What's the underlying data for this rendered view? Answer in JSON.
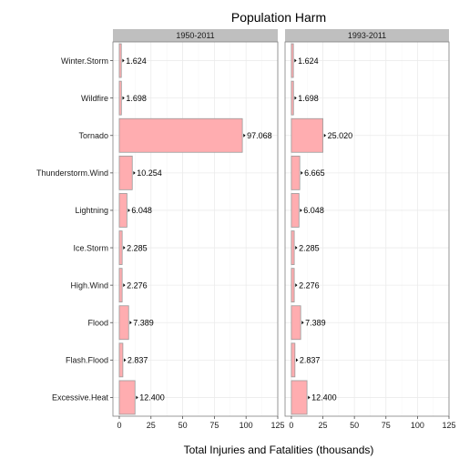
{
  "chart_data": {
    "type": "bar",
    "orientation": "horizontal",
    "title": "Population Harm",
    "xlabel": "Total Injuries and Fatalities (thousands)",
    "ylabel": "",
    "xlim": [
      -5,
      125
    ],
    "xticks": [
      0,
      25,
      50,
      75,
      100,
      125
    ],
    "grid": true,
    "bar_fill": "#ffadb0",
    "bar_stroke": "#9a9a9a",
    "strip_fill": "#bfbfbf",
    "categories": [
      "Winter.Storm",
      "Wildfire",
      "Tornado",
      "Thunderstorm.Wind",
      "Lightning",
      "Ice.Storm",
      "High.Wind",
      "Flood",
      "Flash.Flood",
      "Excessive.Heat"
    ],
    "panels": [
      {
        "name": "1950-2011",
        "values": [
          1.624,
          1.698,
          97.068,
          10.254,
          6.048,
          2.285,
          2.276,
          7.389,
          2.837,
          12.4
        ],
        "labels": [
          "1.624",
          "1.698",
          "97.068",
          "10.254",
          "6.048",
          "2.285",
          "2.276",
          "7.389",
          "2.837",
          "12.400"
        ]
      },
      {
        "name": "1993-2011",
        "values": [
          1.624,
          1.698,
          25.02,
          6.665,
          6.048,
          2.285,
          2.276,
          7.389,
          2.837,
          12.4
        ],
        "labels": [
          "1.624",
          "1.698",
          "25.020",
          "6.665",
          "6.048",
          "2.285",
          "2.276",
          "7.389",
          "2.837",
          "12.400"
        ]
      }
    ]
  }
}
